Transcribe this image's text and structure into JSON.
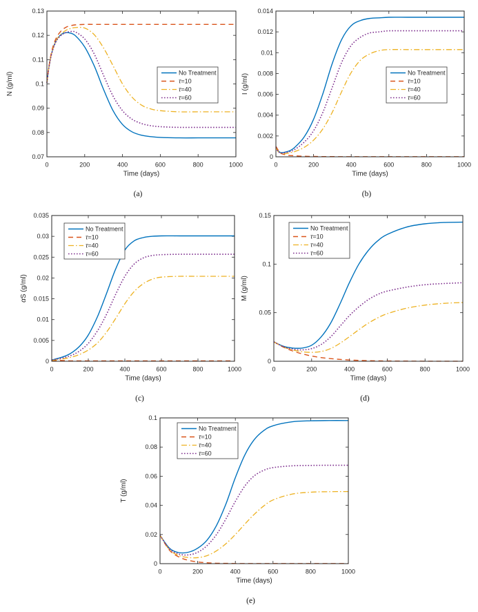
{
  "figure": {
    "background": "#ffffff",
    "axis_color": "#262626",
    "palette": {
      "no_treatment": "#0072BD",
      "tau10": "#D95319",
      "tau40": "#EDB120",
      "tau60": "#7E2F8E"
    },
    "legend_labels": [
      "No Treatment",
      "τ=10",
      "τ=40",
      "τ=60"
    ]
  },
  "chart_data": [
    {
      "id": "a",
      "type": "line",
      "caption": "(a)",
      "xlabel": "Time (days)",
      "ylabel": "N (g/ml)",
      "xlim": [
        0,
        1000
      ],
      "ylim": [
        0.07,
        0.13
      ],
      "xticks": [
        0,
        200,
        400,
        600,
        800,
        1000
      ],
      "xtick_labels": [
        "0",
        "200",
        "400",
        "600",
        "800",
        "1000"
      ],
      "yticks": [
        0.07,
        0.08,
        0.09,
        0.1,
        0.11,
        0.12,
        0.13
      ],
      "ytick_labels": [
        "0.07",
        "0.08",
        "0.09",
        "0.1",
        "0.11",
        "0.12",
        "0.13"
      ],
      "grid": false,
      "legend_pos": "mid-right",
      "x": [
        0,
        10,
        20,
        30,
        40,
        50,
        60,
        80,
        100,
        120,
        150,
        200,
        250,
        300,
        350,
        400,
        450,
        500,
        550,
        600,
        700,
        800,
        900,
        1000
      ],
      "series": [
        {
          "name": "No Treatment",
          "color": "#0072BD",
          "style": "solid",
          "y": [
            0.1005,
            0.1065,
            0.111,
            0.114,
            0.1163,
            0.118,
            0.1192,
            0.1206,
            0.1211,
            0.121,
            0.1199,
            0.1152,
            0.1075,
            0.0977,
            0.089,
            0.0833,
            0.0803,
            0.0789,
            0.0783,
            0.078,
            0.0778,
            0.0778,
            0.0778,
            0.0778
          ]
        },
        {
          "name": "τ=10",
          "color": "#D95319",
          "style": "dashed",
          "y": [
            0.1005,
            0.1068,
            0.1115,
            0.1148,
            0.1172,
            0.119,
            0.1203,
            0.1222,
            0.1233,
            0.1239,
            0.1243,
            0.1245,
            0.1245,
            0.1245,
            0.1245,
            0.1245,
            0.1245,
            0.1245,
            0.1245,
            0.1245,
            0.1245,
            0.1245,
            0.1245,
            0.1245
          ]
        },
        {
          "name": "τ=40",
          "color": "#EDB120",
          "style": "dashdot",
          "y": [
            0.1005,
            0.1065,
            0.111,
            0.114,
            0.1163,
            0.118,
            0.1192,
            0.1209,
            0.122,
            0.1227,
            0.1232,
            0.123,
            0.1203,
            0.1148,
            0.1075,
            0.1,
            0.0946,
            0.0913,
            0.0897,
            0.089,
            0.0885,
            0.0885,
            0.0885,
            0.0885
          ]
        },
        {
          "name": "τ=60",
          "color": "#7E2F8E",
          "style": "dotted",
          "y": [
            0.1005,
            0.1063,
            0.1107,
            0.1137,
            0.116,
            0.1176,
            0.1188,
            0.1203,
            0.1211,
            0.1215,
            0.1214,
            0.1185,
            0.1124,
            0.1035,
            0.095,
            0.089,
            0.0855,
            0.0837,
            0.0828,
            0.0824,
            0.0821,
            0.0821,
            0.0821,
            0.0821
          ]
        }
      ]
    },
    {
      "id": "b",
      "type": "line",
      "caption": "(b)",
      "xlabel": "Time (days)",
      "ylabel": "I (g/ml)",
      "xlim": [
        0,
        1000
      ],
      "ylim": [
        0,
        0.014
      ],
      "xticks": [
        0,
        200,
        400,
        600,
        800,
        1000
      ],
      "xtick_labels": [
        "0",
        "200",
        "400",
        "600",
        "800",
        "1000"
      ],
      "yticks": [
        0,
        0.002,
        0.004,
        0.006,
        0.008,
        0.01,
        0.012,
        0.014
      ],
      "ytick_labels": [
        "0",
        "0.002",
        "0.004",
        "0.006",
        "0.008",
        "0.01",
        "0.012",
        "0.014"
      ],
      "grid": false,
      "legend_pos": "mid-right",
      "x": [
        0,
        10,
        20,
        30,
        50,
        75,
        100,
        150,
        200,
        250,
        300,
        350,
        400,
        450,
        500,
        550,
        600,
        700,
        800,
        900,
        1000
      ],
      "series": [
        {
          "name": "No Treatment",
          "color": "#0072BD",
          "style": "solid",
          "y": [
            0.0009,
            0.0006,
            0.00045,
            0.0004,
            0.00045,
            0.0006,
            0.0009,
            0.0019,
            0.0036,
            0.0061,
            0.009,
            0.0113,
            0.0126,
            0.0131,
            0.0133,
            0.01335,
            0.0134,
            0.0134,
            0.0134,
            0.0134,
            0.0134
          ]
        },
        {
          "name": "τ=10",
          "color": "#D95319",
          "style": "dashed",
          "y": [
            0.001,
            0.0007,
            0.0004,
            0.0003,
            0.0002,
            0.00012,
            0.0001,
            5e-05,
            3e-05,
            2e-05,
            2e-05,
            1e-05,
            1e-05,
            1e-05,
            1e-05,
            1e-05,
            1e-05,
            1e-05,
            1e-05,
            1e-05,
            1e-05
          ]
        },
        {
          "name": "τ=40",
          "color": "#EDB120",
          "style": "dashdot",
          "y": [
            0.0009,
            0.00055,
            0.0004,
            0.0003,
            0.0003,
            0.0004,
            0.0005,
            0.0009,
            0.0016,
            0.0027,
            0.0043,
            0.0063,
            0.0081,
            0.0093,
            0.0099,
            0.0102,
            0.0103,
            0.0103,
            0.0103,
            0.0103,
            0.0103
          ]
        },
        {
          "name": "τ=60",
          "color": "#7E2F8E",
          "style": "dotted",
          "y": [
            0.0009,
            0.00055,
            0.0004,
            0.00035,
            0.0004,
            0.0005,
            0.0007,
            0.0014,
            0.0025,
            0.0043,
            0.0067,
            0.0091,
            0.0107,
            0.0115,
            0.0119,
            0.012,
            0.0121,
            0.0121,
            0.0121,
            0.0121,
            0.0121
          ]
        }
      ]
    },
    {
      "id": "c",
      "type": "line",
      "caption": "(c)",
      "xlabel": "Time (days)",
      "ylabel": "αS (g/ml)",
      "xlim": [
        0,
        1000
      ],
      "ylim": [
        0,
        0.035
      ],
      "xticks": [
        0,
        200,
        400,
        600,
        800,
        1000
      ],
      "xtick_labels": [
        "0",
        "200",
        "400",
        "600",
        "800",
        "1000"
      ],
      "yticks": [
        0,
        0.005,
        0.01,
        0.015,
        0.02,
        0.025,
        0.03,
        0.035
      ],
      "ytick_labels": [
        "0",
        "0.005",
        "0.01",
        "0.015",
        "0.02",
        "0.025",
        "0.03",
        "0.035"
      ],
      "grid": false,
      "legend_pos": "top-left",
      "x": [
        0,
        50,
        100,
        150,
        200,
        250,
        300,
        350,
        400,
        450,
        500,
        550,
        600,
        700,
        800,
        900,
        1000
      ],
      "series": [
        {
          "name": "No Treatment",
          "color": "#0072BD",
          "style": "solid",
          "y": [
            0.0003,
            0.0009,
            0.0018,
            0.0035,
            0.0063,
            0.0107,
            0.0163,
            0.0222,
            0.0267,
            0.0289,
            0.0297,
            0.03,
            0.0301,
            0.0301,
            0.0301,
            0.0301,
            0.0301
          ]
        },
        {
          "name": "τ=10",
          "color": "#D95319",
          "style": "dashed",
          "y": [
            0.0002,
            0.0002,
            0.0001,
            0.0001,
            0.0001,
            0.0001,
            0.0001,
            0.0001,
            0.0001,
            0.0001,
            0.0001,
            0.0001,
            0.0001,
            0.0001,
            0.0001,
            0.0001,
            0.0001
          ]
        },
        {
          "name": "τ=40",
          "color": "#EDB120",
          "style": "dashdot",
          "y": [
            0.0002,
            0.0005,
            0.0009,
            0.0016,
            0.0027,
            0.0044,
            0.007,
            0.0103,
            0.0138,
            0.0167,
            0.0186,
            0.0197,
            0.0202,
            0.0204,
            0.0204,
            0.0204,
            0.0204
          ]
        },
        {
          "name": "τ=60",
          "color": "#7E2F8E",
          "style": "dotted",
          "y": [
            0.0003,
            0.0007,
            0.0013,
            0.0024,
            0.0043,
            0.0073,
            0.0113,
            0.0161,
            0.0204,
            0.0233,
            0.0248,
            0.0254,
            0.0256,
            0.0257,
            0.0257,
            0.0257,
            0.0257
          ]
        }
      ]
    },
    {
      "id": "d",
      "type": "line",
      "caption": "(d)",
      "xlabel": "Time (days)",
      "ylabel": "M (g/ml)",
      "xlim": [
        0,
        1000
      ],
      "ylim": [
        0,
        0.15
      ],
      "xticks": [
        0,
        200,
        400,
        600,
        800,
        1000
      ],
      "xtick_labels": [
        "0",
        "200",
        "400",
        "600",
        "800",
        "1000"
      ],
      "yticks": [
        0,
        0.05,
        0.1,
        0.15
      ],
      "ytick_labels": [
        "0",
        "0.05",
        "0.1",
        "0.15"
      ],
      "grid": false,
      "legend_pos": "top-left",
      "x": [
        0,
        50,
        100,
        150,
        200,
        250,
        300,
        350,
        400,
        450,
        500,
        550,
        600,
        700,
        800,
        900,
        1000
      ],
      "series": [
        {
          "name": "No Treatment",
          "color": "#0072BD",
          "style": "solid",
          "y": [
            0.02,
            0.0155,
            0.0136,
            0.0136,
            0.0165,
            0.025,
            0.039,
            0.059,
            0.081,
            0.1,
            0.114,
            0.124,
            0.1305,
            0.138,
            0.1415,
            0.1428,
            0.1432
          ]
        },
        {
          "name": "τ=10",
          "color": "#D95319",
          "style": "dashed",
          "y": [
            0.02,
            0.0146,
            0.0106,
            0.0076,
            0.0054,
            0.0038,
            0.0027,
            0.0019,
            0.0013,
            0.0009,
            0.0006,
            0.0004,
            0.0003,
            0.0002,
            0.0001,
            0.0001,
            0.0001
          ]
        },
        {
          "name": "τ=40",
          "color": "#EDB120",
          "style": "dashdot",
          "y": [
            0.02,
            0.0148,
            0.0117,
            0.0098,
            0.0092,
            0.01,
            0.013,
            0.0185,
            0.0253,
            0.0325,
            0.0392,
            0.0447,
            0.049,
            0.0545,
            0.0578,
            0.0596,
            0.0605
          ]
        },
        {
          "name": "τ=60",
          "color": "#7E2F8E",
          "style": "dotted",
          "y": [
            0.02,
            0.015,
            0.0125,
            0.0117,
            0.013,
            0.0172,
            0.025,
            0.036,
            0.047,
            0.056,
            0.0635,
            0.0688,
            0.0722,
            0.0762,
            0.0788,
            0.08,
            0.0808
          ]
        }
      ]
    },
    {
      "id": "e",
      "type": "line",
      "caption": "(e)",
      "xlabel": "Time (days)",
      "ylabel": "T (g/ml)",
      "xlim": [
        0,
        1000
      ],
      "ylim": [
        0,
        0.1
      ],
      "xticks": [
        0,
        200,
        400,
        600,
        800,
        1000
      ],
      "xtick_labels": [
        "0",
        "200",
        "400",
        "600",
        "800",
        "1000"
      ],
      "yticks": [
        0,
        0.02,
        0.04,
        0.06,
        0.08,
        0.1
      ],
      "ytick_labels": [
        "0",
        "0.02",
        "0.04",
        "0.06",
        "0.08",
        "0.1"
      ],
      "grid": false,
      "legend_pos": "top-left",
      "x": [
        0,
        50,
        100,
        150,
        200,
        250,
        300,
        350,
        400,
        450,
        500,
        550,
        600,
        700,
        800,
        900,
        1000
      ],
      "series": [
        {
          "name": "No Treatment",
          "color": "#0072BD",
          "style": "solid",
          "y": [
            0.0195,
            0.0106,
            0.0076,
            0.0078,
            0.0106,
            0.0162,
            0.0262,
            0.041,
            0.059,
            0.0745,
            0.085,
            0.0912,
            0.0946,
            0.0973,
            0.098,
            0.0982,
            0.0982
          ]
        },
        {
          "name": "τ=10",
          "color": "#D95319",
          "style": "dashed",
          "y": [
            0.0195,
            0.0092,
            0.0046,
            0.0023,
            0.0012,
            0.0006,
            0.0003,
            0.0002,
            0.0001,
            0.0001,
            0.0001,
            0.0001,
            0.0001,
            0.0001,
            0.0001,
            0.0001,
            0.0001
          ]
        },
        {
          "name": "τ=40",
          "color": "#EDB120",
          "style": "dashdot",
          "y": [
            0.0195,
            0.0096,
            0.0056,
            0.0042,
            0.0041,
            0.0055,
            0.0088,
            0.0137,
            0.02,
            0.0271,
            0.0338,
            0.0395,
            0.0437,
            0.0477,
            0.049,
            0.0494,
            0.0495
          ]
        },
        {
          "name": "τ=60",
          "color": "#7E2F8E",
          "style": "dotted",
          "y": [
            0.0195,
            0.0101,
            0.0066,
            0.006,
            0.0078,
            0.0124,
            0.02,
            0.0307,
            0.0427,
            0.0532,
            0.0602,
            0.064,
            0.0659,
            0.0671,
            0.0674,
            0.0675,
            0.0675
          ]
        }
      ]
    }
  ]
}
